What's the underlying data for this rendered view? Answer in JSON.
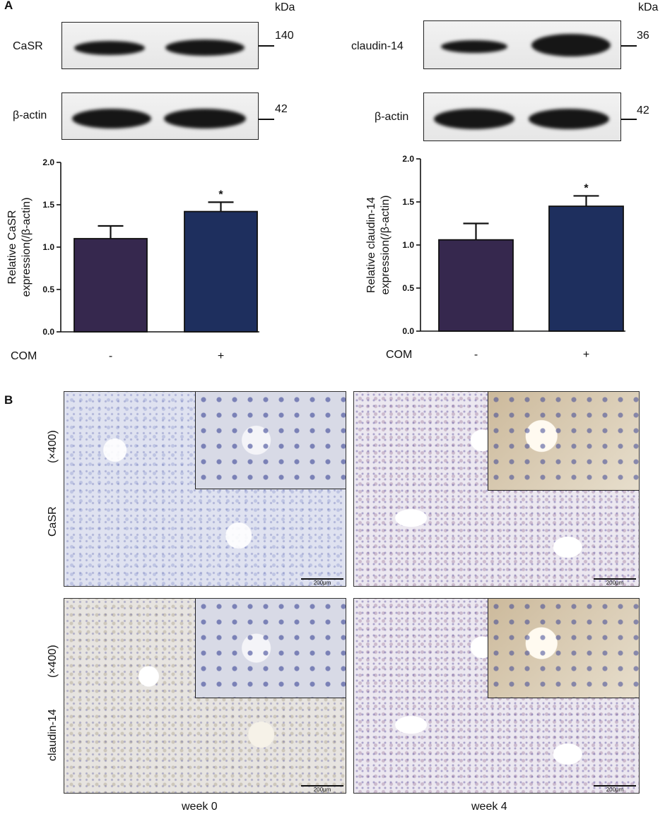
{
  "panels": {
    "a": "A",
    "b": "B"
  },
  "western_blot": {
    "kda_label": "kDa",
    "left": {
      "target_label": "CaSR",
      "target_kda": "140",
      "control_label": "β-actin",
      "control_kda": "42"
    },
    "right": {
      "target_label": "claudin-14",
      "target_kda": "36",
      "control_label": "β-actin",
      "control_kda": "42"
    }
  },
  "chart_data": [
    {
      "type": "bar",
      "categories": [
        "-",
        "+"
      ],
      "values": [
        1.1,
        1.42
      ],
      "errors": [
        0.15,
        0.11
      ],
      "significance": [
        "",
        "*"
      ],
      "colors": [
        "#36284e",
        "#1e2f5e"
      ],
      "ylabel_line1": "Relative CaSR",
      "ylabel_line2": "expression(/β-actin)",
      "xlabel": "COM",
      "ylim": [
        0,
        2.0
      ],
      "yticks": [
        "0.0",
        "0.5",
        "1.0",
        "1.5",
        "2.0"
      ]
    },
    {
      "type": "bar",
      "categories": [
        "-",
        "+"
      ],
      "values": [
        1.06,
        1.45
      ],
      "errors": [
        0.19,
        0.12
      ],
      "significance": [
        "",
        "*"
      ],
      "colors": [
        "#36284e",
        "#1e2f5e"
      ],
      "ylabel_line1": "Relative claudin-14",
      "ylabel_line2": "expression(/β-actin)",
      "xlabel": "COM",
      "ylim": [
        0,
        2.0
      ],
      "yticks": [
        "0.0",
        "0.5",
        "1.0",
        "1.5",
        "2.0"
      ]
    }
  ],
  "ihc": {
    "row1_label": "CaSR",
    "row2_label": "claudin-14",
    "magnification": "(×400)",
    "scale_bar": "200μm",
    "col1_label": "week 0",
    "col2_label": "week 4"
  }
}
